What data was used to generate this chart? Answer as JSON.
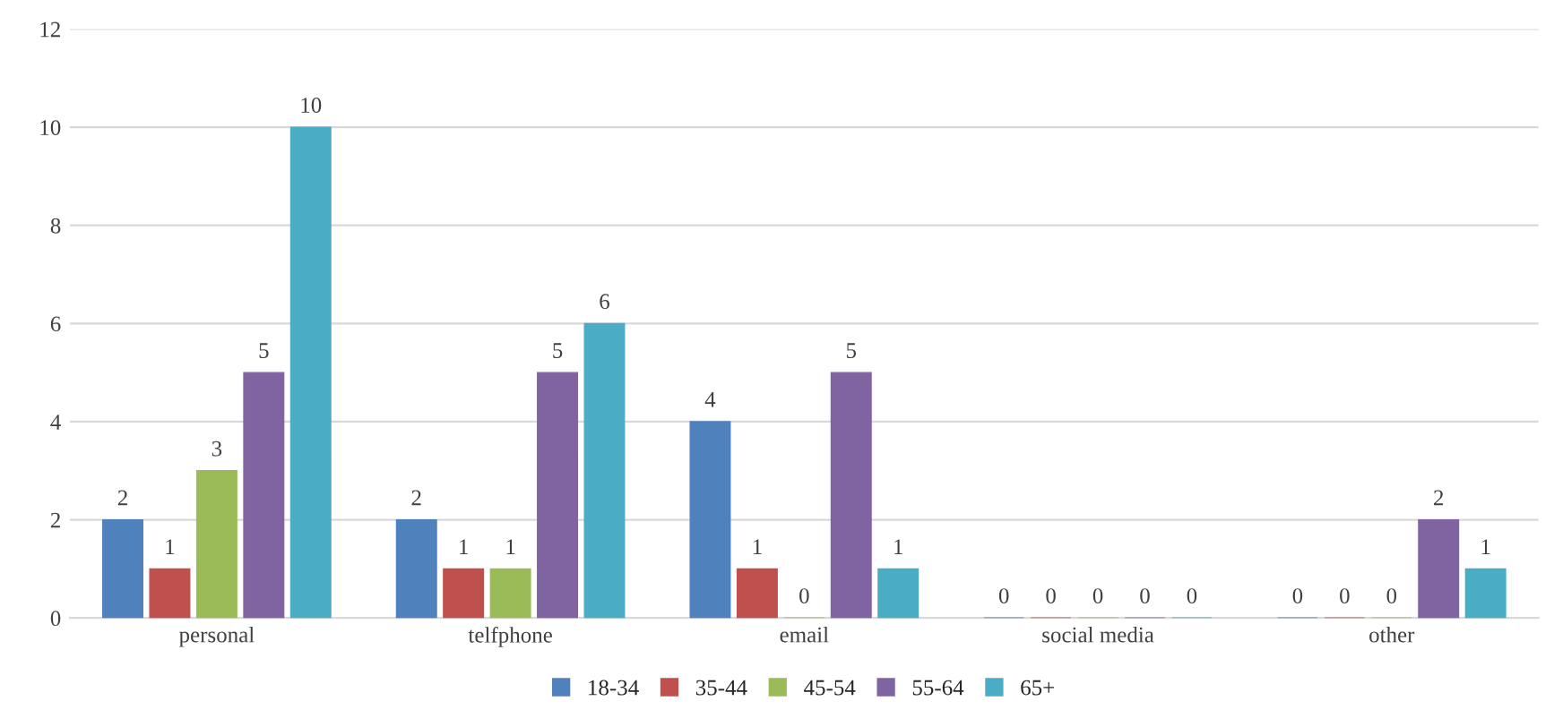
{
  "chart_data": {
    "type": "bar",
    "categories": [
      "personal",
      "telfphone",
      "email",
      "social media",
      "other"
    ],
    "series": [
      {
        "name": "18-34",
        "color": "#4f81bd",
        "values": [
          2,
          2,
          4,
          0,
          0
        ]
      },
      {
        "name": "35-44",
        "color": "#c0504d",
        "values": [
          1,
          1,
          1,
          0,
          0
        ]
      },
      {
        "name": "45-54",
        "color": "#9bbb59",
        "values": [
          3,
          1,
          0,
          0,
          0
        ]
      },
      {
        "name": "55-64",
        "color": "#8064a2",
        "values": [
          5,
          5,
          5,
          0,
          2
        ]
      },
      {
        "name": "65+",
        "color": "#4bacc6",
        "values": [
          10,
          6,
          1,
          0,
          1
        ]
      }
    ],
    "ylim": [
      0,
      12
    ],
    "yticks": [
      0,
      2,
      4,
      6,
      8,
      10,
      12
    ],
    "grid": "y",
    "legend": "bottom",
    "data_labels": true
  }
}
